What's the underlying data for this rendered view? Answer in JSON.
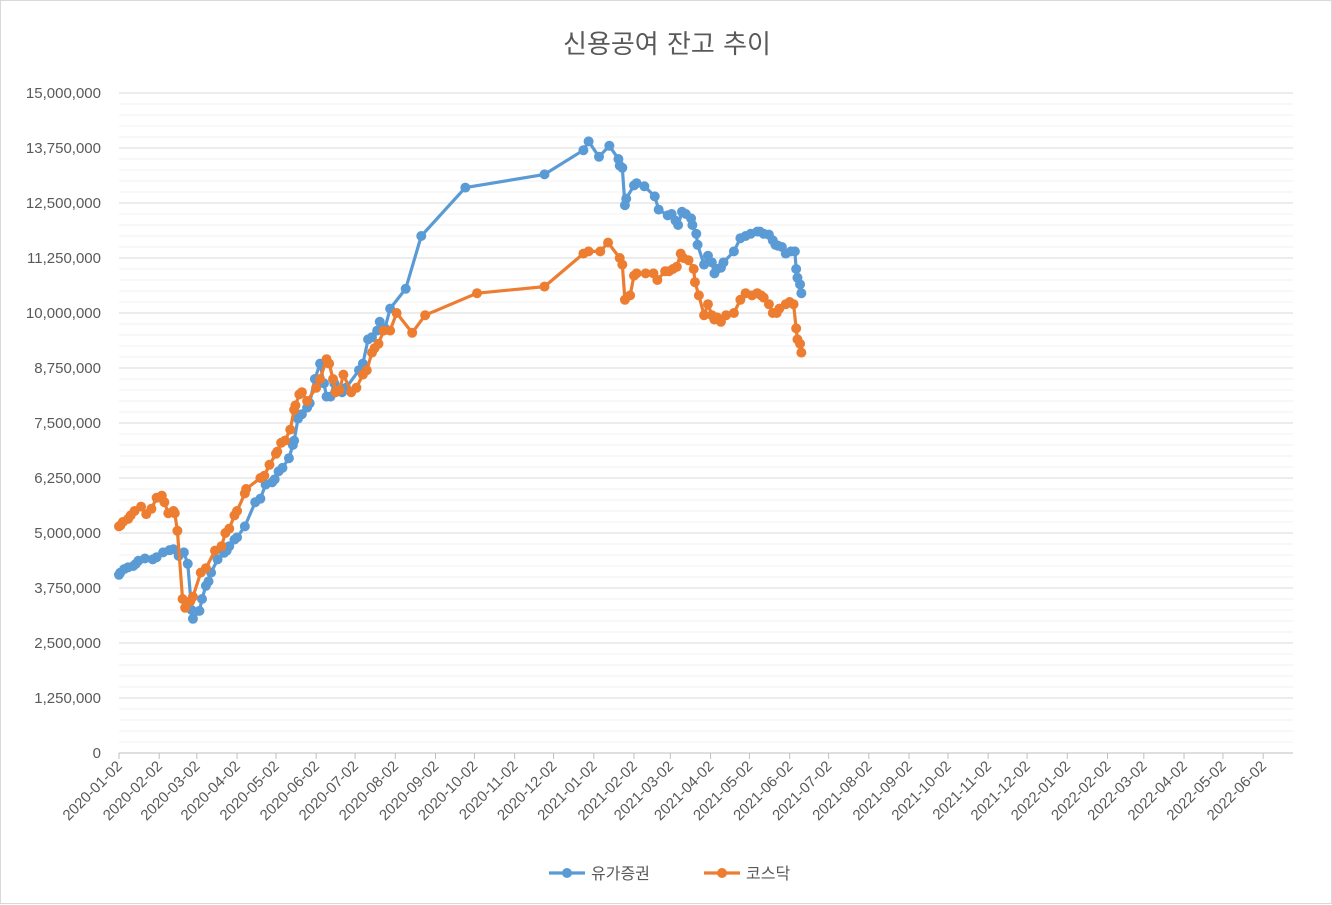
{
  "chart_data": {
    "type": "line",
    "title": "신용공여 잔고 추이",
    "xlabel": "",
    "ylabel": "",
    "ylim": [
      0,
      15000000
    ],
    "y_ticks": [
      "0",
      "1,250,000",
      "2,500,000",
      "3,750,000",
      "5,000,000",
      "6,250,000",
      "7,500,000",
      "8,750,000",
      "10,000,000",
      "11,250,000",
      "12,500,000",
      "13,750,000",
      "15,000,000"
    ],
    "x_ticks": [
      "2020-01-02",
      "2020-02-02",
      "2020-03-02",
      "2020-04-02",
      "2020-05-02",
      "2020-06-02",
      "2020-07-02",
      "2020-08-02",
      "2020-09-02",
      "2020-10-02",
      "2020-11-02",
      "2020-12-02",
      "2021-01-02",
      "2021-02-02",
      "2021-03-02",
      "2021-04-02",
      "2021-05-02",
      "2021-06-02",
      "2021-07-02",
      "2021-08-02",
      "2021-09-02",
      "2021-10-02",
      "2021-11-02",
      "2021-12-02",
      "2022-01-02",
      "2022-02-02",
      "2022-03-02",
      "2022-04-02",
      "2022-05-02",
      "2022-06-02"
    ],
    "x_range": [
      "2020-01-02",
      "2022-06-25"
    ],
    "grid": true,
    "legend": "bottom",
    "series": [
      {
        "name": "유가증권",
        "color": "#5b9bd5",
        "points": [
          [
            "2020-01-02",
            4050000
          ],
          [
            "2020-01-03",
            4100000
          ],
          [
            "2020-01-06",
            4180000
          ],
          [
            "2020-01-09",
            4220000
          ],
          [
            "2020-01-13",
            4250000
          ],
          [
            "2020-01-15",
            4300000
          ],
          [
            "2020-01-17",
            4370000
          ],
          [
            "2020-01-22",
            4420000
          ],
          [
            "2020-01-28",
            4400000
          ],
          [
            "2020-01-31",
            4450000
          ],
          [
            "2020-02-05",
            4560000
          ],
          [
            "2020-02-10",
            4610000
          ],
          [
            "2020-02-13",
            4630000
          ],
          [
            "2020-02-17",
            4480000
          ],
          [
            "2020-02-21",
            4560000
          ],
          [
            "2020-02-24",
            4300000
          ],
          [
            "2020-02-27",
            3250000
          ],
          [
            "2020-02-28",
            3050000
          ],
          [
            "2020-03-04",
            3230000
          ],
          [
            "2020-03-06",
            3500000
          ],
          [
            "2020-03-09",
            3800000
          ],
          [
            "2020-03-11",
            3900000
          ],
          [
            "2020-03-13",
            4100000
          ],
          [
            "2020-03-18",
            4400000
          ],
          [
            "2020-03-23",
            4550000
          ],
          [
            "2020-03-25",
            4600000
          ],
          [
            "2020-03-27",
            4700000
          ],
          [
            "2020-03-31",
            4850000
          ],
          [
            "2020-04-02",
            4900000
          ],
          [
            "2020-04-08",
            5150000
          ],
          [
            "2020-04-16",
            5700000
          ],
          [
            "2020-04-20",
            5780000
          ],
          [
            "2020-04-24",
            6100000
          ],
          [
            "2020-04-29",
            6150000
          ],
          [
            "2020-05-01",
            6220000
          ],
          [
            "2020-05-04",
            6400000
          ],
          [
            "2020-05-07",
            6480000
          ],
          [
            "2020-05-12",
            6700000
          ],
          [
            "2020-05-15",
            7000000
          ],
          [
            "2020-05-16",
            7100000
          ],
          [
            "2020-05-19",
            7600000
          ],
          [
            "2020-05-22",
            7700000
          ],
          [
            "2020-05-26",
            7850000
          ],
          [
            "2020-05-28",
            7950000
          ],
          [
            "2020-06-01",
            8500000
          ],
          [
            "2020-06-05",
            8850000
          ],
          [
            "2020-06-08",
            8400000
          ],
          [
            "2020-06-10",
            8100000
          ],
          [
            "2020-06-13",
            8100000
          ],
          [
            "2020-06-16",
            8400000
          ],
          [
            "2020-06-22",
            8200000
          ],
          [
            "2020-06-25",
            8300000
          ],
          [
            "2020-07-05",
            8700000
          ],
          [
            "2020-07-08",
            8850000
          ],
          [
            "2020-07-12",
            9400000
          ],
          [
            "2020-07-15",
            9450000
          ],
          [
            "2020-07-19",
            9600000
          ],
          [
            "2020-07-21",
            9800000
          ],
          [
            "2020-07-25",
            9650000
          ],
          [
            "2020-07-29",
            10100000
          ],
          [
            "2020-08-10",
            10550000
          ],
          [
            "2020-08-22",
            11750000
          ],
          [
            "2020-09-25",
            12850000
          ],
          [
            "2020-11-25",
            13150000
          ],
          [
            "2020-12-25",
            13700000
          ],
          [
            "2020-12-29",
            13900000
          ],
          [
            "2021-01-06",
            13550000
          ],
          [
            "2021-01-14",
            13800000
          ],
          [
            "2021-01-21",
            13500000
          ],
          [
            "2021-01-22",
            13350000
          ],
          [
            "2021-01-24",
            13300000
          ],
          [
            "2021-01-26",
            12450000
          ],
          [
            "2021-01-27",
            12600000
          ],
          [
            "2021-02-02",
            12900000
          ],
          [
            "2021-02-04",
            12950000
          ],
          [
            "2021-02-10",
            12880000
          ],
          [
            "2021-02-18",
            12650000
          ],
          [
            "2021-02-21",
            12350000
          ],
          [
            "2021-02-28",
            12220000
          ],
          [
            "2021-03-03",
            12250000
          ],
          [
            "2021-03-06",
            12100000
          ],
          [
            "2021-03-08",
            12000000
          ],
          [
            "2021-03-11",
            12300000
          ],
          [
            "2021-03-14",
            12250000
          ],
          [
            "2021-03-18",
            12150000
          ],
          [
            "2021-03-19",
            12000000
          ],
          [
            "2021-03-22",
            11800000
          ],
          [
            "2021-03-23",
            11550000
          ],
          [
            "2021-03-28",
            11100000
          ],
          [
            "2021-03-31",
            11300000
          ],
          [
            "2021-04-03",
            11150000
          ],
          [
            "2021-04-05",
            10900000
          ],
          [
            "2021-04-07",
            11000000
          ],
          [
            "2021-04-10",
            11030000
          ],
          [
            "2021-04-12",
            11150000
          ],
          [
            "2021-04-20",
            11400000
          ],
          [
            "2021-04-25",
            11700000
          ],
          [
            "2021-04-29",
            11750000
          ],
          [
            "2021-05-03",
            11800000
          ],
          [
            "2021-05-08",
            11850000
          ],
          [
            "2021-05-10",
            11850000
          ],
          [
            "2021-05-13",
            11800000
          ],
          [
            "2021-05-17",
            11780000
          ],
          [
            "2021-05-20",
            11650000
          ],
          [
            "2021-05-22",
            11550000
          ],
          [
            "2021-05-24",
            11530000
          ],
          [
            "2021-05-27",
            11500000
          ],
          [
            "2021-05-30",
            11350000
          ],
          [
            "2021-06-03",
            11400000
          ],
          [
            "2021-06-06",
            11400000
          ],
          [
            "2021-06-07",
            11000000
          ],
          [
            "2021-06-08",
            10800000
          ],
          [
            "2021-06-10",
            10650000
          ],
          [
            "2021-06-11",
            10450000
          ]
        ]
      },
      {
        "name": "코스닥",
        "color": "#ed7d31",
        "points": [
          [
            "2020-01-02",
            5150000
          ],
          [
            "2020-01-03",
            5170000
          ],
          [
            "2020-01-05",
            5250000
          ],
          [
            "2020-01-09",
            5320000
          ],
          [
            "2020-01-11",
            5400000
          ],
          [
            "2020-01-14",
            5500000
          ],
          [
            "2020-01-19",
            5600000
          ],
          [
            "2020-01-23",
            5430000
          ],
          [
            "2020-01-27",
            5550000
          ],
          [
            "2020-01-31",
            5800000
          ],
          [
            "2020-02-04",
            5850000
          ],
          [
            "2020-02-06",
            5700000
          ],
          [
            "2020-02-09",
            5450000
          ],
          [
            "2020-02-13",
            5500000
          ],
          [
            "2020-02-14",
            5450000
          ],
          [
            "2020-02-16",
            5050000
          ],
          [
            "2020-02-20",
            3500000
          ],
          [
            "2020-02-22",
            3300000
          ],
          [
            "2020-02-26",
            3450000
          ],
          [
            "2020-02-28",
            3550000
          ],
          [
            "2020-03-05",
            4100000
          ],
          [
            "2020-03-09",
            4200000
          ],
          [
            "2020-03-16",
            4600000
          ],
          [
            "2020-03-21",
            4700000
          ],
          [
            "2020-03-24",
            5000000
          ],
          [
            "2020-03-27",
            5100000
          ],
          [
            "2020-03-31",
            5400000
          ],
          [
            "2020-04-02",
            5500000
          ],
          [
            "2020-04-08",
            5900000
          ],
          [
            "2020-04-09",
            6000000
          ],
          [
            "2020-04-20",
            6250000
          ],
          [
            "2020-04-23",
            6300000
          ],
          [
            "2020-04-27",
            6550000
          ],
          [
            "2020-05-02",
            6800000
          ],
          [
            "2020-05-03",
            6850000
          ],
          [
            "2020-05-06",
            7050000
          ],
          [
            "2020-05-09",
            7100000
          ],
          [
            "2020-05-13",
            7350000
          ],
          [
            "2020-05-16",
            7800000
          ],
          [
            "2020-05-17",
            7900000
          ],
          [
            "2020-05-20",
            8150000
          ],
          [
            "2020-05-22",
            8200000
          ],
          [
            "2020-05-26",
            8000000
          ],
          [
            "2020-06-02",
            8300000
          ],
          [
            "2020-06-05",
            8500000
          ],
          [
            "2020-06-10",
            8950000
          ],
          [
            "2020-06-12",
            8850000
          ],
          [
            "2020-06-15",
            8500000
          ],
          [
            "2020-06-17",
            8200000
          ],
          [
            "2020-06-20",
            8250000
          ],
          [
            "2020-06-23",
            8600000
          ],
          [
            "2020-06-29",
            8200000
          ],
          [
            "2020-07-03",
            8300000
          ],
          [
            "2020-07-08",
            8600000
          ],
          [
            "2020-07-11",
            8700000
          ],
          [
            "2020-07-15",
            9100000
          ],
          [
            "2020-07-17",
            9200000
          ],
          [
            "2020-07-20",
            9300000
          ],
          [
            "2020-07-24",
            9600000
          ],
          [
            "2020-07-29",
            9600000
          ],
          [
            "2020-08-03",
            10000000
          ],
          [
            "2020-08-15",
            9550000
          ],
          [
            "2020-08-25",
            9950000
          ],
          [
            "2020-10-04",
            10450000
          ],
          [
            "2020-11-25",
            10600000
          ],
          [
            "2020-12-25",
            11350000
          ],
          [
            "2020-12-29",
            11400000
          ],
          [
            "2021-01-07",
            11400000
          ],
          [
            "2021-01-13",
            11600000
          ],
          [
            "2021-01-22",
            11250000
          ],
          [
            "2021-01-24",
            11100000
          ],
          [
            "2021-01-26",
            10300000
          ],
          [
            "2021-01-30",
            10400000
          ],
          [
            "2021-02-02",
            10850000
          ],
          [
            "2021-02-04",
            10900000
          ],
          [
            "2021-02-11",
            10900000
          ],
          [
            "2021-02-17",
            10900000
          ],
          [
            "2021-02-20",
            10750000
          ],
          [
            "2021-02-26",
            10950000
          ],
          [
            "2021-03-01",
            10950000
          ],
          [
            "2021-03-04",
            11000000
          ],
          [
            "2021-03-07",
            11050000
          ],
          [
            "2021-03-10",
            11350000
          ],
          [
            "2021-03-12",
            11250000
          ],
          [
            "2021-03-16",
            11200000
          ],
          [
            "2021-03-20",
            11000000
          ],
          [
            "2021-03-21",
            10700000
          ],
          [
            "2021-03-24",
            10400000
          ],
          [
            "2021-03-28",
            9950000
          ],
          [
            "2021-03-31",
            10200000
          ],
          [
            "2021-04-03",
            9950000
          ],
          [
            "2021-04-05",
            9850000
          ],
          [
            "2021-04-07",
            9900000
          ],
          [
            "2021-04-10",
            9800000
          ],
          [
            "2021-04-14",
            9950000
          ],
          [
            "2021-04-20",
            10000000
          ],
          [
            "2021-04-25",
            10300000
          ],
          [
            "2021-04-29",
            10450000
          ],
          [
            "2021-05-04",
            10400000
          ],
          [
            "2021-05-08",
            10450000
          ],
          [
            "2021-05-11",
            10400000
          ],
          [
            "2021-05-13",
            10350000
          ],
          [
            "2021-05-17",
            10200000
          ],
          [
            "2021-05-20",
            10000000
          ],
          [
            "2021-05-23",
            10000000
          ],
          [
            "2021-05-25",
            10100000
          ],
          [
            "2021-05-30",
            10200000
          ],
          [
            "2021-06-02",
            10250000
          ],
          [
            "2021-06-05",
            10200000
          ],
          [
            "2021-06-07",
            9650000
          ],
          [
            "2021-06-08",
            9400000
          ],
          [
            "2021-06-10",
            9300000
          ],
          [
            "2021-06-11",
            9100000
          ]
        ]
      }
    ]
  }
}
